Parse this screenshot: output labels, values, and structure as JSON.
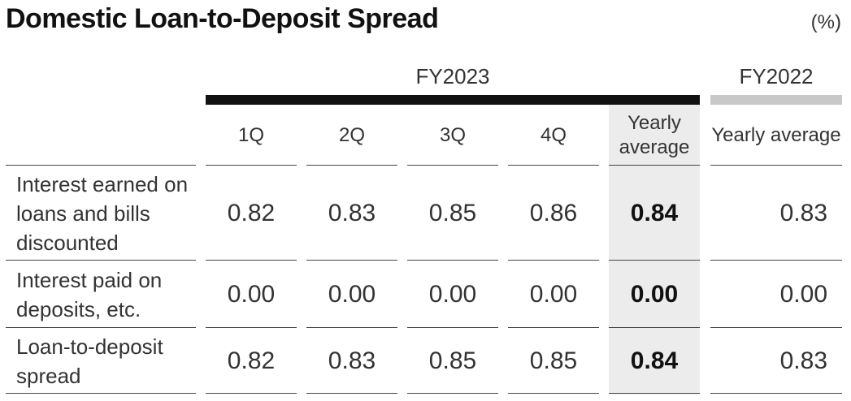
{
  "title": "Domestic Loan-to-Deposit Spread",
  "unit": "(%)",
  "chart_data": {
    "type": "table",
    "title": "Domestic Loan-to-Deposit Spread",
    "unit": "(%)",
    "column_groups": [
      {
        "label": "FY2023",
        "columns": [
          "1Q",
          "2Q",
          "3Q",
          "4Q",
          "Yearly average"
        ]
      },
      {
        "label": "FY2022",
        "columns": [
          "Yearly average"
        ]
      }
    ],
    "columns": [
      "1Q",
      "2Q",
      "3Q",
      "4Q",
      "Yearly average",
      "Yearly average"
    ],
    "rows": [
      {
        "label": "Interest earned on loans and bills discounted",
        "values": [
          "0.82",
          "0.83",
          "0.85",
          "0.86",
          "0.84",
          "0.83"
        ]
      },
      {
        "label": "Interest paid on deposits, etc.",
        "values": [
          "0.00",
          "0.00",
          "0.00",
          "0.00",
          "0.00",
          "0.00"
        ]
      },
      {
        "label": "Loan-to-deposit spread",
        "values": [
          "0.82",
          "0.83",
          "0.85",
          "0.85",
          "0.84",
          "0.83"
        ]
      }
    ]
  }
}
